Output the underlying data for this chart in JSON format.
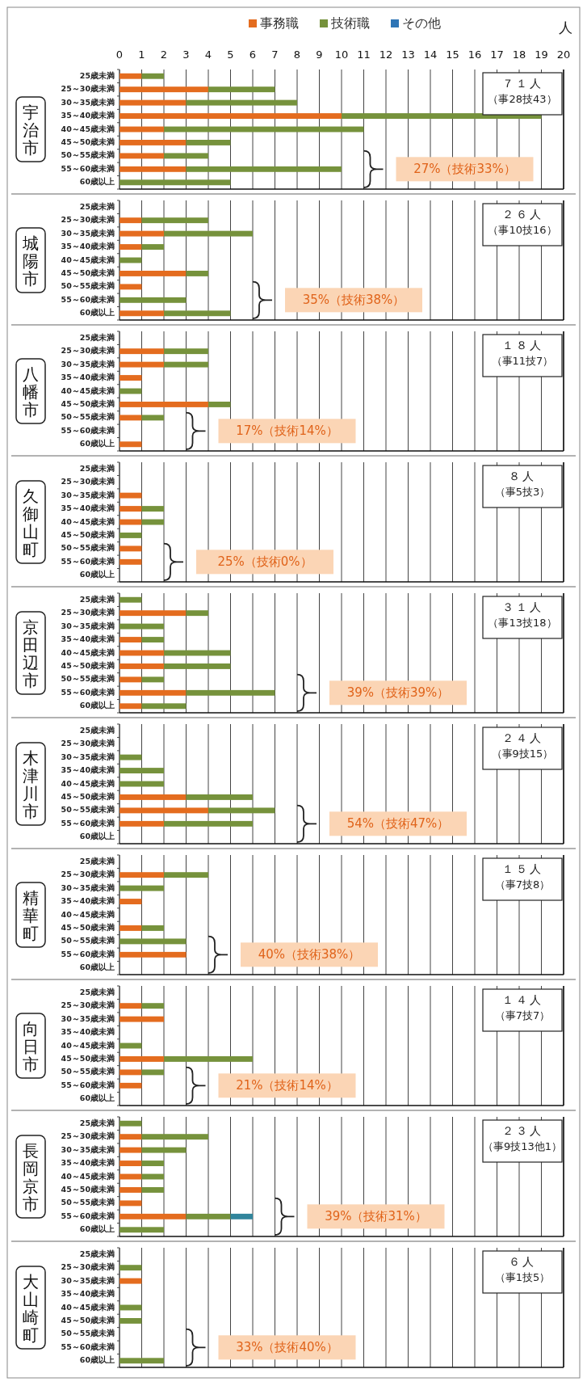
{
  "chart_data": [
    {
      "type": "bar",
      "orientation": "horizontal",
      "stacked": true,
      "title": "宇治市",
      "xlabel": "人",
      "legend": "top",
      "grid": "x",
      "xlim": [
        0,
        20
      ],
      "xticks": [
        0,
        1,
        2,
        3,
        4,
        5,
        6,
        7,
        8,
        9,
        10,
        11,
        12,
        13,
        14,
        15,
        16,
        17,
        18,
        19,
        20
      ],
      "categories": [
        "25歳未満",
        "25～30歳未満",
        "30～35歳未満",
        "35～40歳未満",
        "40～45歳未満",
        "45～50歳未満",
        "50～55歳未満",
        "55～60歳未満",
        "60歳以上"
      ],
      "series": [
        {
          "name": "事務職",
          "color": "#e46c1f",
          "values": [
            1,
            4,
            3,
            10,
            2,
            3,
            2,
            3,
            0
          ]
        },
        {
          "name": "技術職",
          "color": "#76923c",
          "values": [
            1,
            3,
            5,
            9,
            9,
            2,
            2,
            7,
            5
          ]
        },
        {
          "name": "その他",
          "color": "#2e75b6",
          "values": [
            0,
            0,
            0,
            0,
            0,
            0,
            0,
            0,
            0
          ]
        }
      ],
      "annotations": [
        "７１人",
        "（事28技43）",
        "27%（技術33%）"
      ]
    },
    {
      "type": "bar",
      "orientation": "horizontal",
      "stacked": true,
      "title": "城陽市",
      "tick_labels": "y",
      "grid": "x",
      "xlim": [
        0,
        20
      ],
      "xticks": [
        0,
        1,
        2,
        3,
        4,
        5,
        6,
        7,
        8,
        9,
        10,
        11,
        12,
        13,
        14,
        15,
        16,
        17,
        18,
        19,
        20
      ],
      "categories": [
        "25歳未満",
        "25～30歳未満",
        "30～35歳未満",
        "35～40歳未満",
        "40～45歳未満",
        "45～50歳未満",
        "50～55歳未満",
        "55～60歳未満",
        "60歳以上"
      ],
      "series": [
        {
          "color": "#e46c1f",
          "values": [
            0,
            1,
            2,
            1,
            0,
            3,
            1,
            0,
            2
          ]
        },
        {
          "color": "#76923c",
          "values": [
            0,
            3,
            4,
            1,
            1,
            1,
            0,
            3,
            3
          ]
        }
      ],
      "annotations": [
        "２６人",
        "（事10技16）",
        "35%（技術38%）"
      ]
    },
    {
      "type": "bar",
      "orientation": "horizontal",
      "stacked": true,
      "title": "八幡市",
      "tick_labels": "y",
      "grid": "x",
      "xlim": [
        0,
        20
      ],
      "xticks": [
        0,
        1,
        2,
        3,
        4,
        5,
        6,
        7,
        8,
        9,
        10,
        11,
        12,
        13,
        14,
        15,
        16,
        17,
        18,
        19,
        20
      ],
      "categories": [
        "25歳未満",
        "25～30歳未満",
        "30～35歳未満",
        "35～40歳未満",
        "40～45歳未満",
        "45～50歳未満",
        "50～55歳未満",
        "55～60歳未満",
        "60歳以上"
      ],
      "series": [
        {
          "color": "#e46c1f",
          "values": [
            0,
            2,
            2,
            1,
            0,
            4,
            1,
            0,
            1
          ]
        },
        {
          "color": "#76923c",
          "values": [
            0,
            2,
            2,
            0,
            1,
            1,
            1,
            0,
            0
          ]
        }
      ],
      "annotations": [
        "１８人",
        "（事11技7）",
        "17%（技術14%）"
      ]
    },
    {
      "type": "bar",
      "orientation": "horizontal",
      "stacked": true,
      "title": "久御山町",
      "tick_labels": "y",
      "grid": "x",
      "xlim": [
        0,
        20
      ],
      "xticks": [
        0,
        1,
        2,
        3,
        4,
        5,
        6,
        7,
        8,
        9,
        10,
        11,
        12,
        13,
        14,
        15,
        16,
        17,
        18,
        19,
        20
      ],
      "categories": [
        "25歳未満",
        "25～30歳未満",
        "30～35歳未満",
        "35～40歳未満",
        "40～45歳未満",
        "45～50歳未満",
        "50～55歳未満",
        "55～60歳未満",
        "60歳以上"
      ],
      "series": [
        {
          "color": "#e46c1f",
          "values": [
            0,
            0,
            1,
            1,
            1,
            0,
            1,
            1,
            0
          ]
        },
        {
          "color": "#76923c",
          "values": [
            0,
            0,
            0,
            1,
            1,
            1,
            0,
            0,
            0
          ]
        }
      ],
      "annotations": [
        "８人",
        "（事5技3）",
        "25%（技術0%）"
      ]
    },
    {
      "type": "bar",
      "orientation": "horizontal",
      "stacked": true,
      "title": "京田辺市",
      "tick_labels": "y",
      "grid": "x",
      "xlim": [
        0,
        20
      ],
      "xticks": [
        0,
        1,
        2,
        3,
        4,
        5,
        6,
        7,
        8,
        9,
        10,
        11,
        12,
        13,
        14,
        15,
        16,
        17,
        18,
        19,
        20
      ],
      "categories": [
        "25歳未満",
        "25～30歳未満",
        "30～35歳未満",
        "35～40歳未満",
        "40～45歳未満",
        "45～50歳未満",
        "50～55歳未満",
        "55～60歳未満",
        "60歳以上"
      ],
      "series": [
        {
          "color": "#e46c1f",
          "values": [
            0,
            3,
            0,
            1,
            2,
            2,
            1,
            3,
            1
          ]
        },
        {
          "color": "#76923c",
          "values": [
            1,
            1,
            2,
            1,
            3,
            3,
            1,
            4,
            2
          ]
        }
      ],
      "annotations": [
        "３１人",
        "（事13技18）",
        "39%（技術39%）"
      ]
    },
    {
      "type": "bar",
      "orientation": "horizontal",
      "stacked": true,
      "title": "木津川市",
      "tick_labels": "y",
      "grid": "x",
      "xlim": [
        0,
        20
      ],
      "xticks": [
        0,
        1,
        2,
        3,
        4,
        5,
        6,
        7,
        8,
        9,
        10,
        11,
        12,
        13,
        14,
        15,
        16,
        17,
        18,
        19,
        20
      ],
      "categories": [
        "25歳未満",
        "25～30歳未満",
        "30～35歳未満",
        "35～40歳未満",
        "40～45歳未満",
        "45～50歳未満",
        "50～55歳未満",
        "55～60歳未満",
        "60歳以上"
      ],
      "series": [
        {
          "color": "#e46c1f",
          "values": [
            0,
            0,
            0,
            0,
            0,
            3,
            4,
            2,
            0
          ]
        },
        {
          "color": "#76923c",
          "values": [
            0,
            0,
            1,
            2,
            2,
            3,
            3,
            4,
            0
          ]
        }
      ],
      "annotations": [
        "２４人",
        "（事9技15）",
        "54%（技術47%）"
      ]
    },
    {
      "type": "bar",
      "orientation": "horizontal",
      "stacked": true,
      "title": "精華町",
      "tick_labels": "y",
      "grid": "x",
      "xlim": [
        0,
        20
      ],
      "xticks": [
        0,
        1,
        2,
        3,
        4,
        5,
        6,
        7,
        8,
        9,
        10,
        11,
        12,
        13,
        14,
        15,
        16,
        17,
        18,
        19,
        20
      ],
      "categories": [
        "25歳未満",
        "25～30歳未満",
        "30～35歳未満",
        "35～40歳未満",
        "40～45歳未満",
        "45～50歳未満",
        "50～55歳未満",
        "55～60歳未満",
        "60歳以上"
      ],
      "series": [
        {
          "color": "#e46c1f",
          "values": [
            0,
            2,
            0,
            1,
            0,
            1,
            0,
            3,
            0
          ]
        },
        {
          "color": "#76923c",
          "values": [
            0,
            2,
            2,
            0,
            0,
            1,
            3,
            0,
            0
          ]
        }
      ],
      "annotations": [
        "１５人",
        "（事7技8）",
        "40%（技術38%）"
      ]
    },
    {
      "type": "bar",
      "orientation": "horizontal",
      "stacked": true,
      "title": "向日市",
      "tick_labels": "y",
      "grid": "x",
      "xlim": [
        0,
        20
      ],
      "xticks": [
        0,
        1,
        2,
        3,
        4,
        5,
        6,
        7,
        8,
        9,
        10,
        11,
        12,
        13,
        14,
        15,
        16,
        17,
        18,
        19,
        20
      ],
      "categories": [
        "25歳未満",
        "25～30歳未満",
        "30～35歳未満",
        "35～40歳未満",
        "40～45歳未満",
        "45～50歳未満",
        "50～55歳未満",
        "55～60歳未満",
        "60歳以上"
      ],
      "series": [
        {
          "color": "#e46c1f",
          "values": [
            0,
            1,
            2,
            0,
            0,
            2,
            1,
            1,
            0
          ]
        },
        {
          "color": "#76923c",
          "values": [
            0,
            1,
            0,
            0,
            1,
            4,
            1,
            0,
            0
          ]
        }
      ],
      "annotations": [
        "１４人",
        "（事7技7）",
        "21%（技術14%）"
      ]
    },
    {
      "type": "bar",
      "orientation": "horizontal",
      "stacked": true,
      "title": "長岡京市",
      "tick_labels": "y",
      "grid": "x",
      "xlim": [
        0,
        20
      ],
      "xticks": [
        0,
        1,
        2,
        3,
        4,
        5,
        6,
        7,
        8,
        9,
        10,
        11,
        12,
        13,
        14,
        15,
        16,
        17,
        18,
        19,
        20
      ],
      "categories": [
        "25歳未満",
        "25～30歳未満",
        "30～35歳未満",
        "35～40歳未満",
        "40～45歳未満",
        "45～50歳未満",
        "50～55歳未満",
        "55～60歳未満",
        "60歳以上"
      ],
      "series": [
        {
          "color": "#e46c1f",
          "values": [
            0,
            1,
            1,
            1,
            1,
            1,
            1,
            3,
            0
          ]
        },
        {
          "color": "#76923c",
          "values": [
            1,
            3,
            2,
            1,
            1,
            1,
            0,
            2,
            2
          ]
        },
        {
          "color": "#31859c",
          "values": [
            0,
            0,
            0,
            0,
            0,
            0,
            0,
            1,
            0
          ]
        }
      ],
      "annotations": [
        "２３人",
        "（事9技13他1）",
        "39%（技術31%）"
      ]
    },
    {
      "type": "bar",
      "orientation": "horizontal",
      "stacked": true,
      "title": "大山崎町",
      "tick_labels": "y",
      "grid": "x",
      "xlim": [
        0,
        20
      ],
      "xticks": [
        0,
        1,
        2,
        3,
        4,
        5,
        6,
        7,
        8,
        9,
        10,
        11,
        12,
        13,
        14,
        15,
        16,
        17,
        18,
        19,
        20
      ],
      "categories": [
        "25歳未満",
        "25～30歳未満",
        "30～35歳未満",
        "35～40歳未満",
        "40～45歳未満",
        "45～50歳未満",
        "50～55歳未満",
        "55～60歳未満",
        "60歳以上"
      ],
      "series": [
        {
          "color": "#e46c1f",
          "values": [
            0,
            0,
            1,
            0,
            0,
            0,
            0,
            0,
            0
          ]
        },
        {
          "color": "#76923c",
          "values": [
            0,
            1,
            0,
            0,
            1,
            1,
            0,
            0,
            2
          ]
        }
      ],
      "annotations": [
        "６人",
        "（事1技5）",
        "33%（技術40%）"
      ]
    }
  ]
}
